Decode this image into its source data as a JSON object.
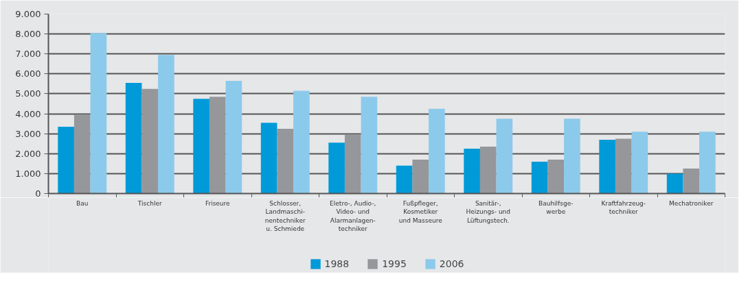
{
  "chart_data": {
    "type": "bar",
    "categories": [
      "Bau",
      "Tischler",
      "Friseure",
      "Schlosser,\nLandmaschi-\nnentechniker\nu. Schmiede",
      "Eletro-, Audio-,\nVideo- und\nAlarmanlagen-\ntechniker",
      "Fußpfleger,\nKosmetiker\nund Masseure",
      "Sanitär-,\nHeizungs- und\nLüftungstech.",
      "Bauhilfsge-\nwerbe",
      "Kraftfahrzeug-\ntechniker",
      "Mechatroniker"
    ],
    "series": [
      {
        "name": "1988",
        "color": "#009ad8",
        "values": [
          3350,
          5550,
          4750,
          3550,
          2550,
          1400,
          2250,
          1600,
          2700,
          1000
        ]
      },
      {
        "name": "1995",
        "color": "#96979b",
        "values": [
          3950,
          5250,
          4850,
          3250,
          2950,
          1700,
          2350,
          1700,
          2750,
          1250
        ]
      },
      {
        "name": "2006",
        "color": "#8ccaeb",
        "values": [
          8050,
          6950,
          5650,
          5150,
          4850,
          4250,
          3750,
          3750,
          3100,
          3100
        ]
      }
    ],
    "ylim": [
      0,
      9000
    ],
    "yticks": [
      {
        "value": 0,
        "label": "0"
      },
      {
        "value": 1000,
        "label": "1.000"
      },
      {
        "value": 2000,
        "label": "2.000"
      },
      {
        "value": 3000,
        "label": "3.000"
      },
      {
        "value": 4000,
        "label": "4.000"
      },
      {
        "value": 5000,
        "label": "5.000"
      },
      {
        "value": 6000,
        "label": "6.000"
      },
      {
        "value": 7000,
        "label": "7.000"
      },
      {
        "value": 8000,
        "label": "8.000"
      },
      {
        "value": 9000,
        "label": "9.000"
      }
    ],
    "grid": "y",
    "legend": "bottom"
  }
}
